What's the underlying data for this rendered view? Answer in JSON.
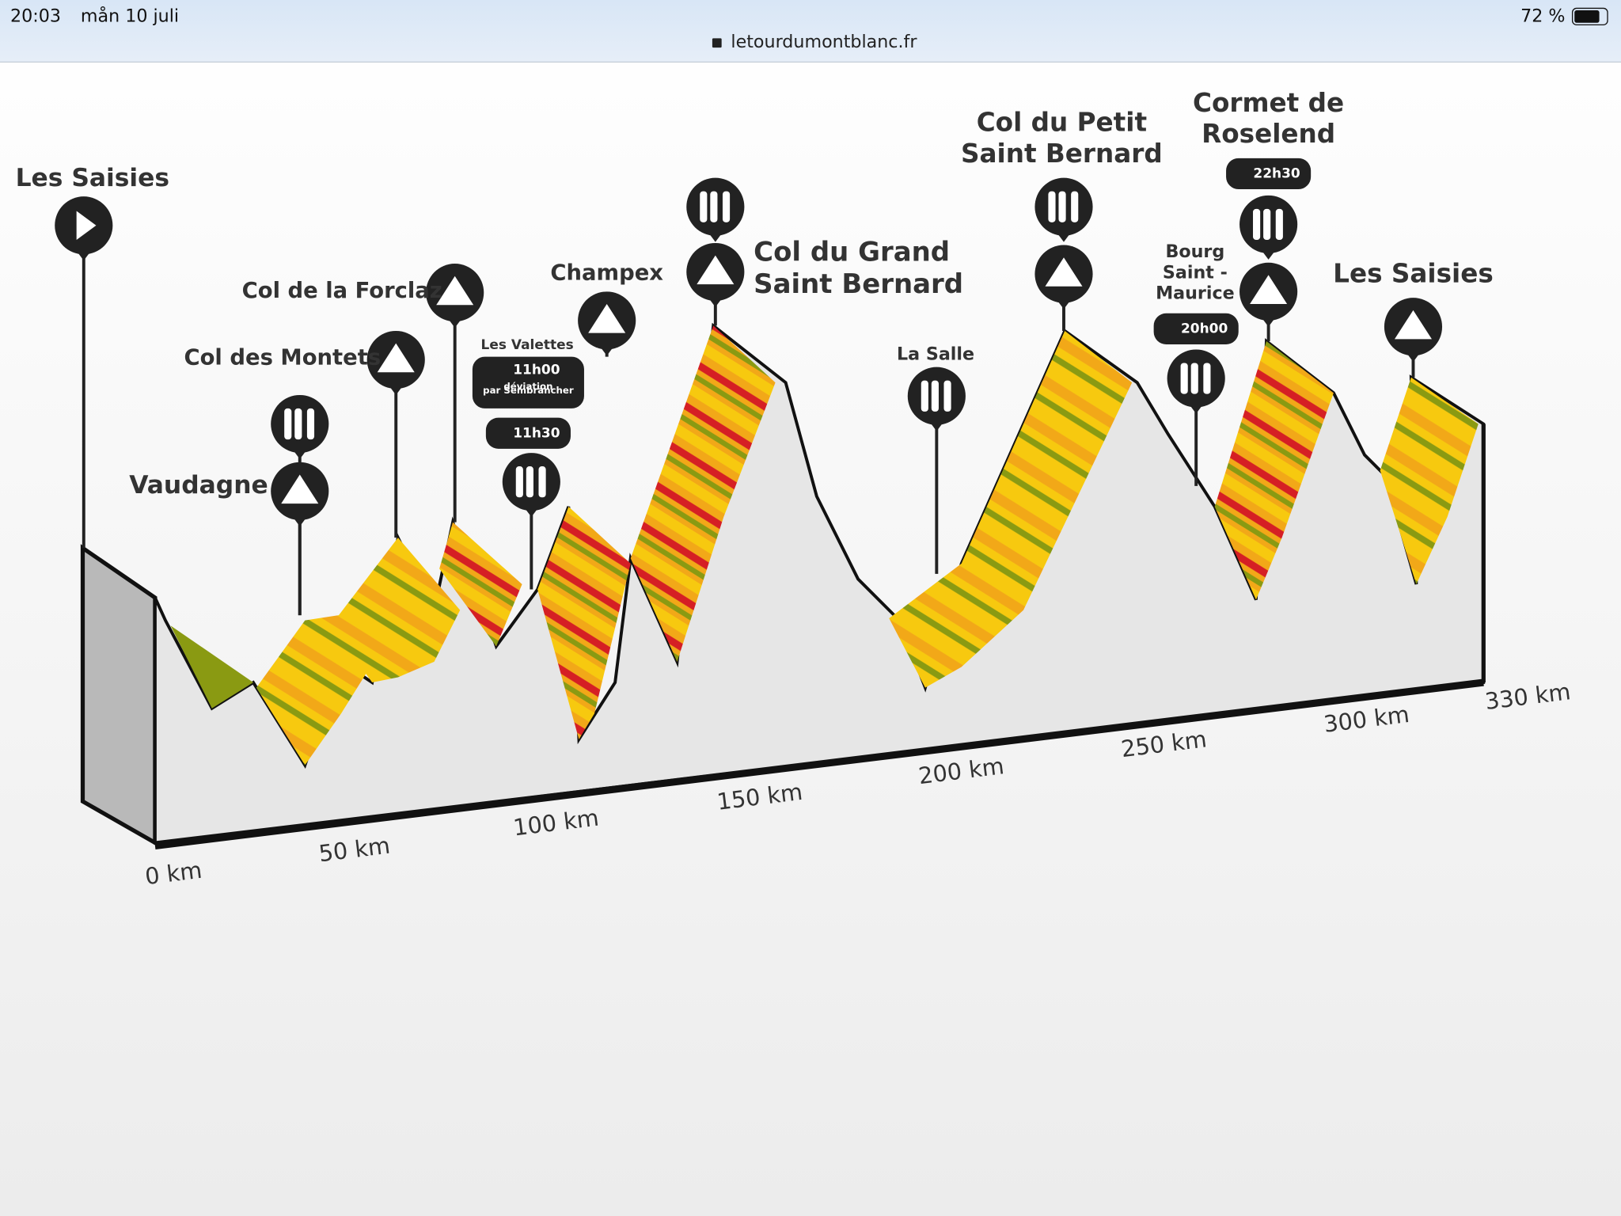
{
  "status_bar": {
    "time": "20:03",
    "date": "mån 10 juli",
    "battery": "72 %",
    "url": "letourdumontblanc.fr"
  },
  "places": [
    {
      "lines": [
        "Les Saisies"
      ]
    },
    {
      "lines": [
        "Vaudagne"
      ]
    },
    {
      "lines": [
        "Col des Montets"
      ]
    },
    {
      "lines": [
        "Col de la Forclaz"
      ]
    },
    {
      "lines": [
        "Les Valettes"
      ]
    },
    {
      "lines": [
        "Champex"
      ]
    },
    {
      "lines": [
        "Col du Grand",
        "Saint Bernard"
      ]
    },
    {
      "lines": [
        "La Salle"
      ]
    },
    {
      "lines": [
        "Col du Petit",
        "Saint Bernard"
      ]
    },
    {
      "lines": [
        "Bourg",
        "Saint -",
        "Maurice"
      ]
    },
    {
      "lines": [
        "Cormet de",
        "Roselend"
      ]
    },
    {
      "lines": [
        "Les Saisies"
      ]
    }
  ],
  "badges": [
    {
      "lines": [
        "11h00",
        "déviation",
        "par Sembrancher"
      ]
    },
    {
      "lines": [
        "11h30"
      ]
    },
    {
      "lines": [
        "20h00"
      ]
    },
    {
      "lines": [
        "22h30"
      ]
    }
  ],
  "distances": [
    "0 km",
    "50 km",
    "100 km",
    "150 km",
    "200 km",
    "250 km",
    "300 km",
    "330 km"
  ]
}
